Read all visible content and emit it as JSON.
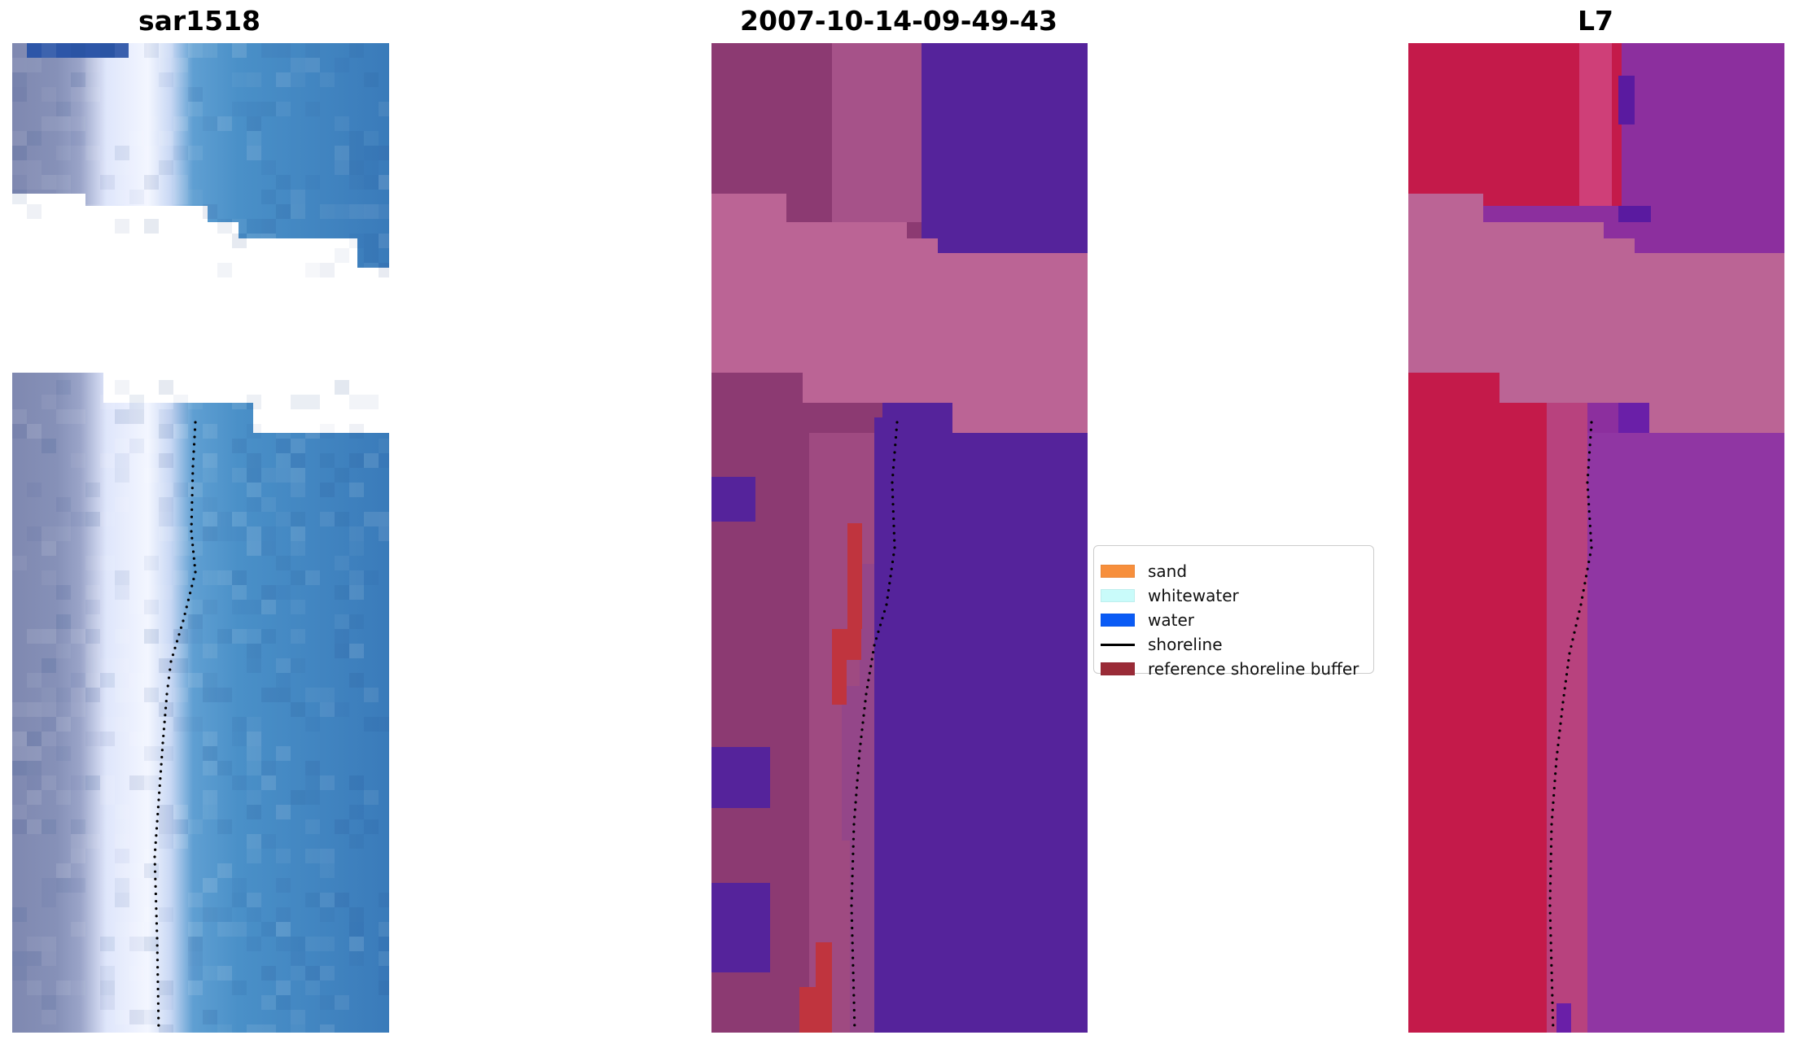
{
  "panels": [
    {
      "id": "sar",
      "title": "sar1518"
    },
    {
      "id": "classified",
      "title": "2007-10-14-09-49-43"
    },
    {
      "id": "l7",
      "title": "L7"
    }
  ],
  "legend": {
    "items": [
      {
        "label": "sand",
        "kind": "patch",
        "color": "#f78f3c"
      },
      {
        "label": "whitewater",
        "kind": "patch",
        "color": "#c9fbfa"
      },
      {
        "label": "water",
        "kind": "patch",
        "color": "#0a5bf5"
      },
      {
        "label": "shoreline",
        "kind": "line",
        "color": "#000000"
      },
      {
        "label": "reference shoreline buffer",
        "kind": "patch",
        "color": "#9a2b37"
      }
    ]
  },
  "colors": {
    "ocean_blue": "#3a7fbd",
    "sand_grey": "#8a93b8",
    "surf_white": "#e8eefb",
    "class_water": "#55239b",
    "class_land": "#8c3a72",
    "class_nodata": "#bb6495",
    "class_buffer": "#c0343e",
    "l7_red": "#c41a4a",
    "l7_purple": "#8c2f9e",
    "l7_nodata": "#bb6495"
  }
}
